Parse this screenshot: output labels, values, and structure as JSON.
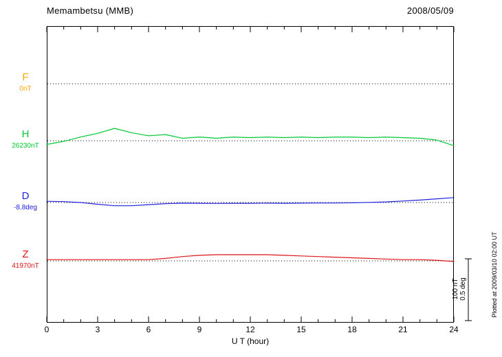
{
  "header": {
    "station_title": "Memambetsu (MMB)",
    "date": "2008/05/09"
  },
  "x_axis": {
    "label": "U T (hour)",
    "tick_hours": [
      0,
      3,
      6,
      9,
      12,
      15,
      18,
      21,
      24
    ],
    "minor_tick_step": 1,
    "min": 0,
    "max": 24
  },
  "traces": [
    {
      "id": "F",
      "label": "F",
      "baseline_label": "0nT",
      "color": "#FFA500",
      "unit": "nT"
    },
    {
      "id": "H",
      "label": "H",
      "baseline_label": "26230nT",
      "color": "#00C832",
      "unit": "nT"
    },
    {
      "id": "D",
      "label": "D",
      "baseline_label": "-8.8deg",
      "color": "#2020DC",
      "unit": "deg"
    },
    {
      "id": "Z",
      "label": "Z",
      "baseline_label": "41970nT",
      "color": "#DC1414",
      "unit": "nT"
    }
  ],
  "scale_bar": {
    "label_nT": "100 nT",
    "label_deg": "0.5 deg"
  },
  "side_note": "Plotted at 2009/03/10 02:00 UT",
  "chart_data": {
    "type": "line",
    "title": "Memambetsu (MMB) magnetogram 2008/05/09",
    "xlabel": "U T (hour)",
    "xlim": [
      0,
      24
    ],
    "grid": "dotted horizontal baselines per trace",
    "legend_position": "left margin trace labels",
    "x_hours": [
      0,
      1,
      2,
      3,
      4,
      5,
      6,
      7,
      8,
      9,
      10,
      11,
      12,
      13,
      14,
      15,
      16,
      17,
      18,
      19,
      20,
      21,
      22,
      23,
      24
    ],
    "scale": {
      "nT_per_div": 100,
      "deg_per_div": 0.5
    },
    "series": [
      {
        "name": "F",
        "baseline": 0,
        "unit": "nT",
        "values": []
      },
      {
        "name": "H",
        "baseline": 26230,
        "unit": "nT",
        "values": [
          -6,
          -1,
          6,
          12,
          20,
          13,
          8,
          10,
          4,
          6,
          4,
          6,
          5,
          6,
          5,
          6,
          5,
          6,
          6,
          5,
          6,
          5,
          4,
          1,
          -8
        ]
      },
      {
        "name": "D",
        "baseline": -8.8,
        "unit": "deg",
        "values": [
          0.01,
          0.007,
          0.0,
          -0.014,
          -0.026,
          -0.026,
          -0.017,
          -0.009,
          -0.005,
          -0.006,
          -0.007,
          -0.006,
          -0.006,
          -0.005,
          -0.006,
          -0.005,
          -0.004,
          -0.004,
          -0.002,
          0.001,
          0.005,
          0.012,
          0.02,
          0.03,
          0.04
        ]
      },
      {
        "name": "Z",
        "baseline": 41970,
        "unit": "nT",
        "values": [
          2,
          2,
          2,
          2,
          2,
          2,
          2,
          4,
          7,
          9,
          10,
          10,
          10,
          10,
          9,
          8,
          7,
          6,
          5,
          4,
          3,
          2,
          2,
          1,
          -1
        ]
      }
    ]
  }
}
